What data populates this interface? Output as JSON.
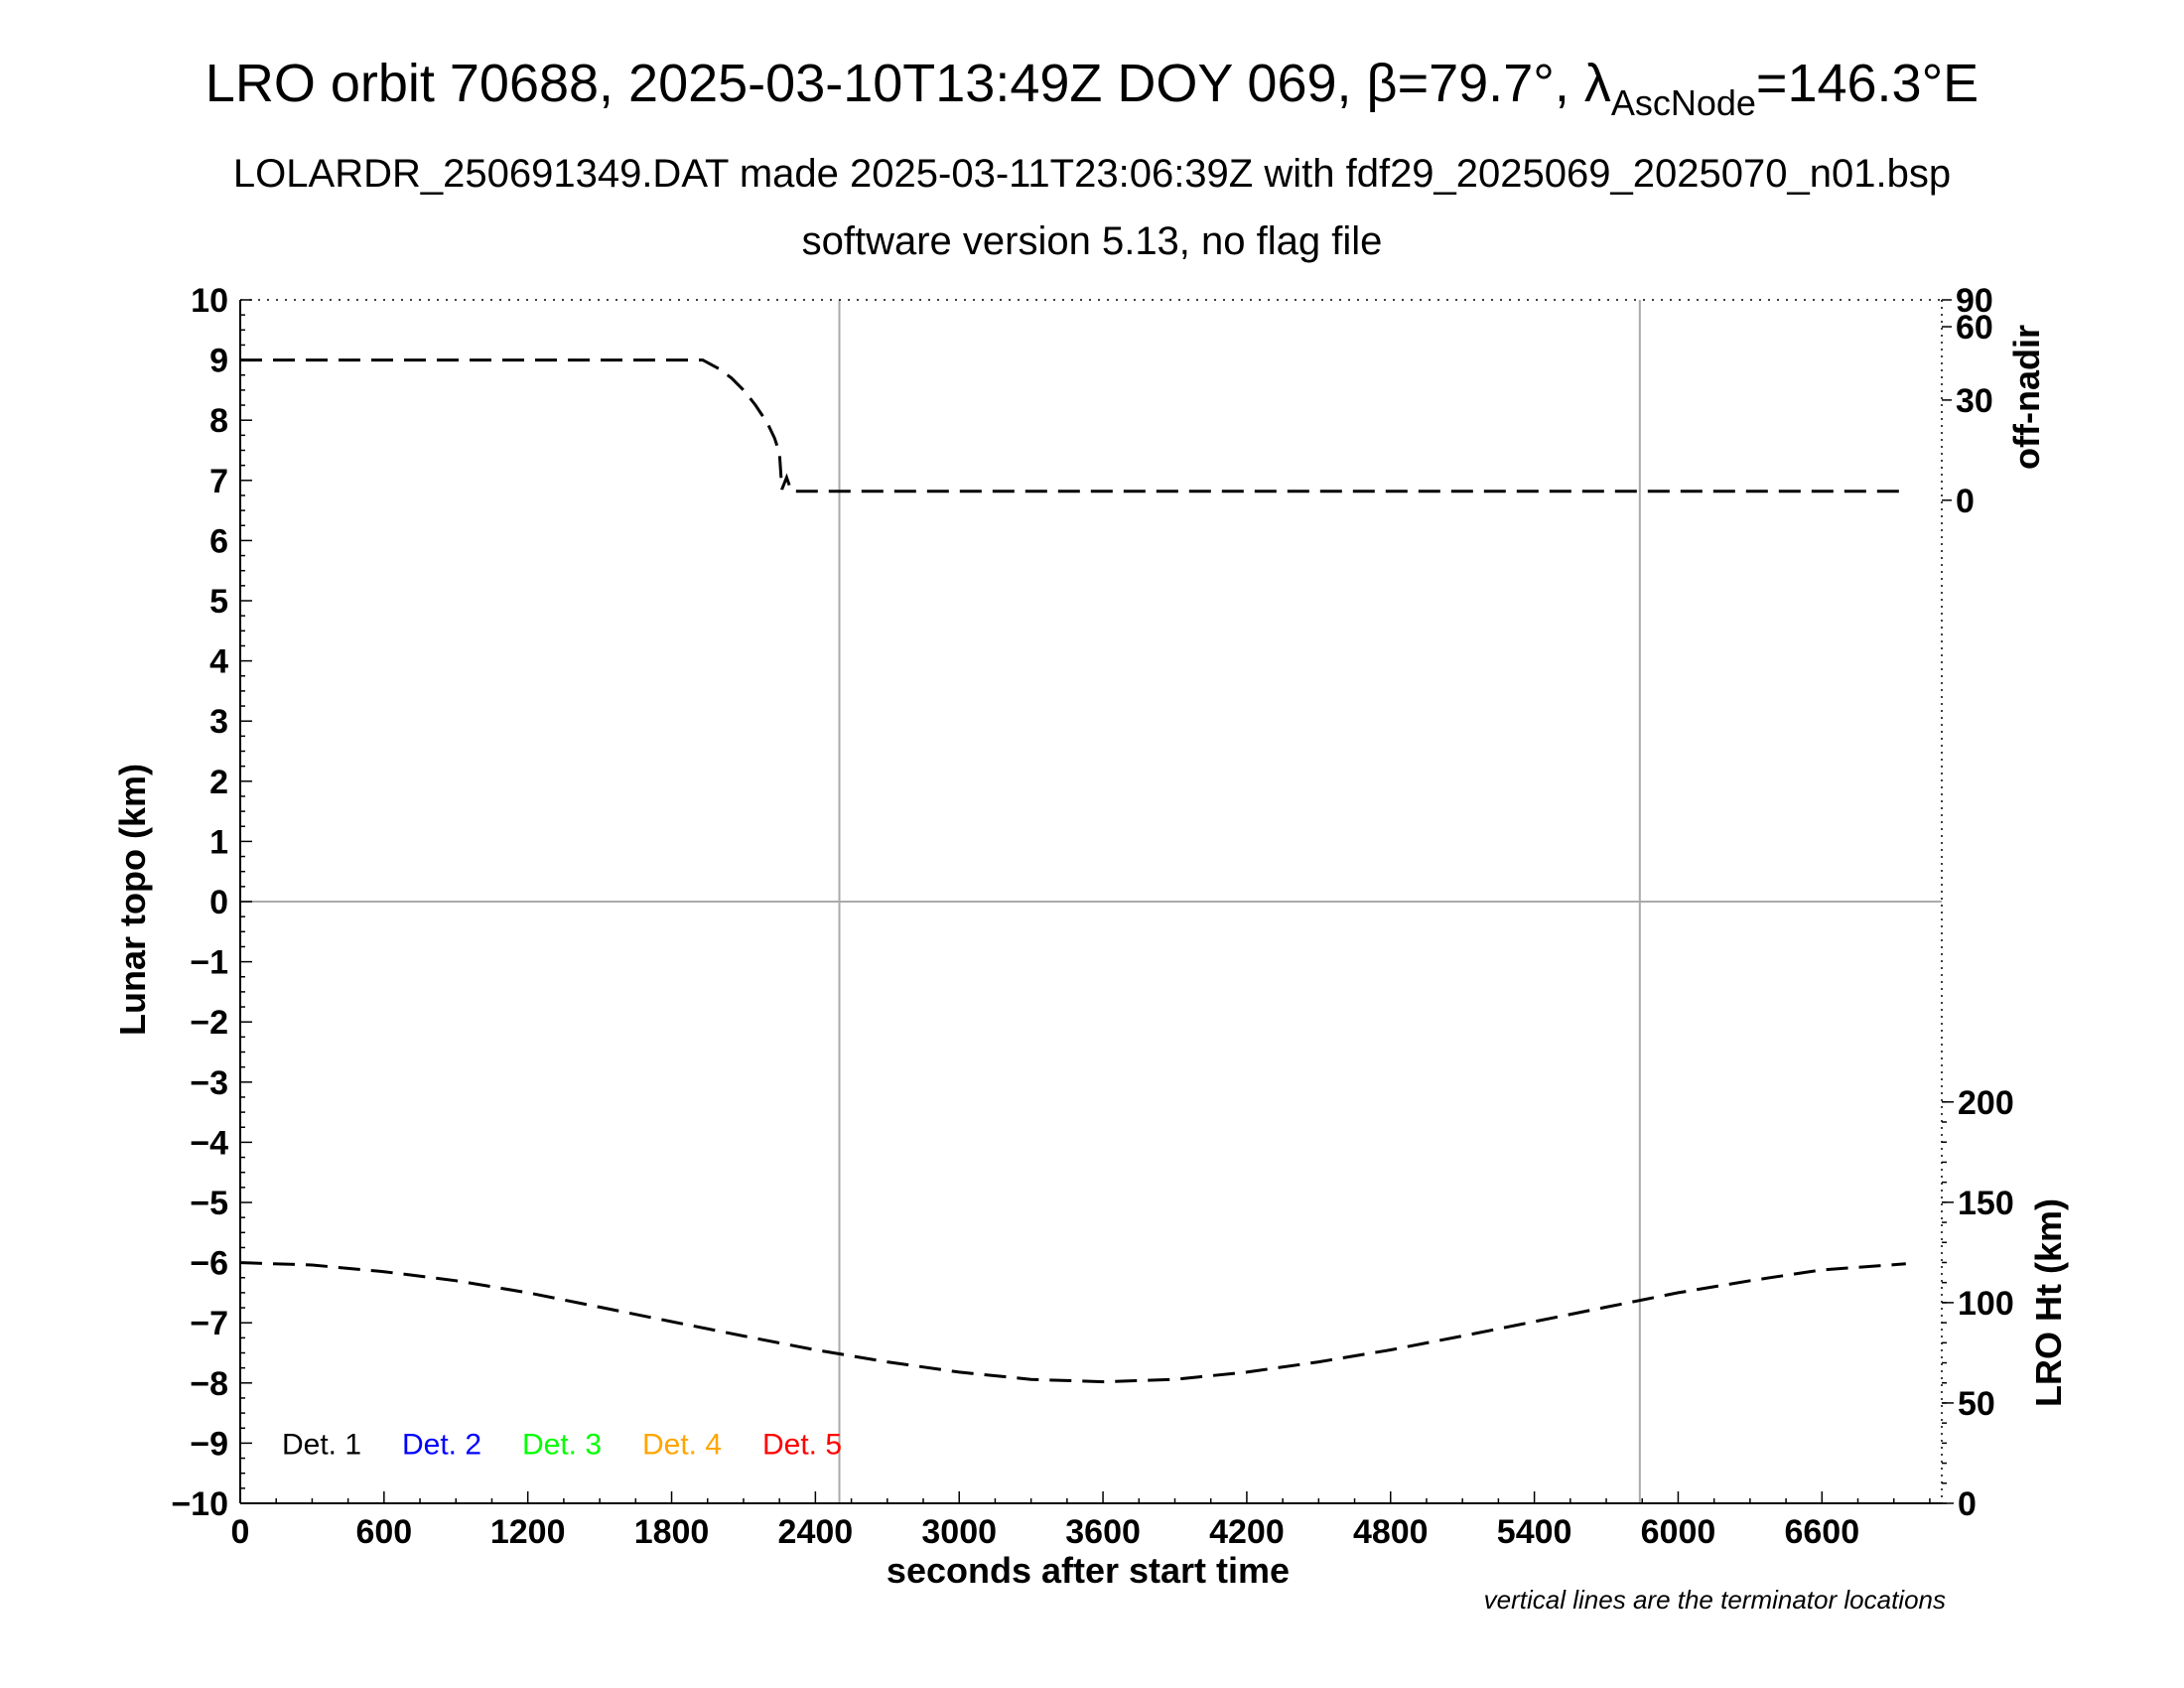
{
  "chart_data": {
    "type": "line",
    "title": {
      "pre": "LRO orbit 70688, 2025-03-10T13:49Z DOY 069, β=79.7°, λ",
      "sub": "AscNode",
      "post": "=146.3°E"
    },
    "subtitle1": "LOLARDR_250691349.DAT made 2025-03-11T23:06:39Z with fdf29_2025069_2025070_n01.bsp",
    "subtitle2": "software version 5.13, no flag file",
    "xlabel": "seconds after start time",
    "ylabel": "Lunar topo (km)",
    "xlim": [
      0,
      7100
    ],
    "ylim": [
      -10,
      10
    ],
    "xticks": [
      0,
      600,
      1200,
      1800,
      2400,
      3000,
      3600,
      4200,
      4800,
      5400,
      6000,
      6600
    ],
    "yticks": [
      10,
      9,
      8,
      7,
      6,
      5,
      4,
      3,
      2,
      1,
      0,
      -1,
      -2,
      -3,
      -4,
      -5,
      -6,
      -7,
      -8,
      -9,
      -10
    ],
    "right_axis_top": {
      "label": "off-nadir",
      "ticks": [
        "90",
        "60",
        "30",
        "0"
      ]
    },
    "right_axis_bottom": {
      "label": "LRO Ht (km)",
      "ticks": [
        "200",
        "150",
        "100",
        "50",
        "0"
      ]
    },
    "terminator_lines_x": [
      2500,
      5840
    ],
    "grid": "terminator vertical lines and y=0 horizontal line",
    "legend": {
      "placement": "bottom-left",
      "entries": [
        {
          "label": "Det. 1",
          "color": "#000000"
        },
        {
          "label": "Det. 2",
          "color": "#0000ff"
        },
        {
          "label": "Det. 3",
          "color": "#00ff00"
        },
        {
          "label": "Det. 4",
          "color": "#ffa500"
        },
        {
          "label": "Det. 5",
          "color": "#ff0000"
        }
      ]
    },
    "note": "vertical lines are the terminator locations",
    "series": [
      {
        "style": "dashed",
        "color": "#000000",
        "x": [
          0,
          600,
          1200,
          1800,
          1930,
          2000,
          2050,
          2100,
          2150,
          2200,
          2230,
          2250,
          2260,
          2280,
          2300,
          3000,
          3600,
          4200,
          4800,
          5400,
          6000,
          6600,
          6950
        ],
        "y": [
          9.0,
          9.0,
          9.0,
          9.0,
          9.0,
          8.85,
          8.7,
          8.5,
          8.25,
          7.95,
          7.7,
          7.45,
          6.85,
          7.05,
          6.82,
          6.82,
          6.82,
          6.82,
          6.82,
          6.82,
          6.82,
          6.82,
          6.82
        ]
      },
      {
        "style": "dashed",
        "color": "#000000",
        "x": [
          0,
          300,
          600,
          900,
          1200,
          1500,
          1800,
          2100,
          2400,
          2700,
          3000,
          3300,
          3600,
          3900,
          4200,
          4500,
          4800,
          5100,
          5400,
          5700,
          6000,
          6300,
          6600,
          6950
        ],
        "y": [
          -6.0,
          -6.04,
          -6.15,
          -6.3,
          -6.5,
          -6.74,
          -6.98,
          -7.22,
          -7.45,
          -7.65,
          -7.82,
          -7.94,
          -7.98,
          -7.94,
          -7.82,
          -7.65,
          -7.45,
          -7.22,
          -6.98,
          -6.74,
          -6.5,
          -6.3,
          -6.12,
          -6.02
        ]
      }
    ]
  }
}
